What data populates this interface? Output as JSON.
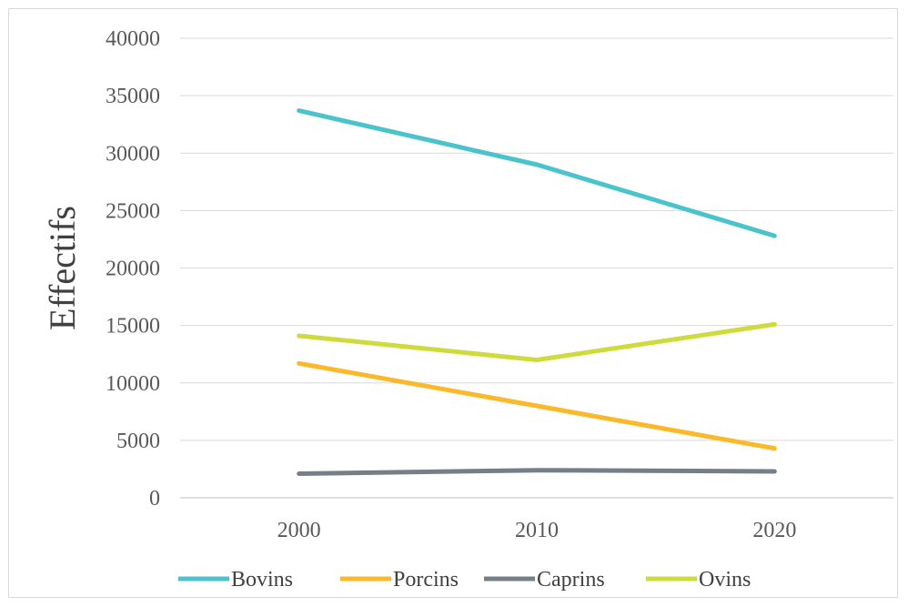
{
  "chart_data": {
    "type": "line",
    "title": "",
    "xlabel": "",
    "ylabel": "Effectifs",
    "categories": [
      "2000",
      "2010",
      "2020"
    ],
    "ylim": [
      0,
      40000
    ],
    "yticks": [
      0,
      5000,
      10000,
      15000,
      20000,
      25000,
      30000,
      35000,
      40000
    ],
    "grid": true,
    "legend_position": "bottom",
    "series": [
      {
        "name": "Bovins",
        "color": "#4bc3cc",
        "values": [
          33700,
          29000,
          22800
        ]
      },
      {
        "name": "Porcins",
        "color": "#fbb829",
        "values": [
          11700,
          8000,
          4300
        ]
      },
      {
        "name": "Caprins",
        "color": "#767f87",
        "values": [
          2100,
          2400,
          2300
        ]
      },
      {
        "name": "Ovins",
        "color": "#cfdb3c",
        "values": [
          14100,
          12000,
          15100
        ]
      }
    ]
  }
}
